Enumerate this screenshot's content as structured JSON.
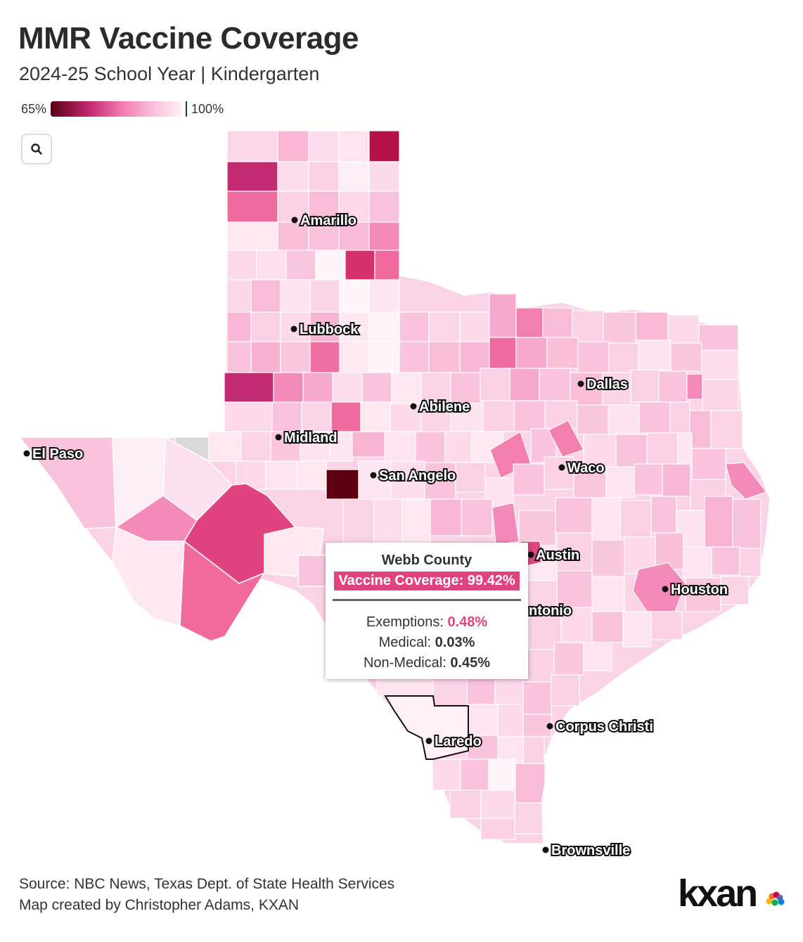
{
  "title": "MMR Vaccine Coverage",
  "subtitle": "2024-25 School Year | Kindergarten",
  "legend": {
    "min_label": "65%",
    "max_label": "100%"
  },
  "colors": {
    "darkest": "#5c0012",
    "accent": "#e0437f",
    "lightest": "#fff0f7",
    "no_data": "#d9d9d9"
  },
  "search_icon": "search-icon",
  "cities": {
    "amarillo": "Amarillo",
    "lubbock": "Lubbock",
    "abilene": "Abilene",
    "dallas": "Dallas",
    "midland": "Midland",
    "el_paso": "El Paso",
    "waco": "Waco",
    "san_angelo": "San Angelo",
    "austin": "Austin",
    "houston": "Houston",
    "san_antonio": "ntonio",
    "corpus_christi": "Corpus Christi",
    "laredo": "Laredo",
    "brownsville": "Brownsville"
  },
  "tooltip": {
    "county": "Webb County",
    "coverage": "Vaccine Coverage: 99.42%",
    "exemptions_label": "Exemptions: ",
    "exemptions_value": "0.48%",
    "medical_label": "Medical: ",
    "medical_value": "0.03%",
    "nonmedical_label": "Non-Medical: ",
    "nonmedical_value": "0.45%"
  },
  "source": {
    "line1": "Source: NBC News, Texas Dept. of State Health Services",
    "line2": "Map created by Christopher Adams, KXAN"
  },
  "logo": "kxan"
}
